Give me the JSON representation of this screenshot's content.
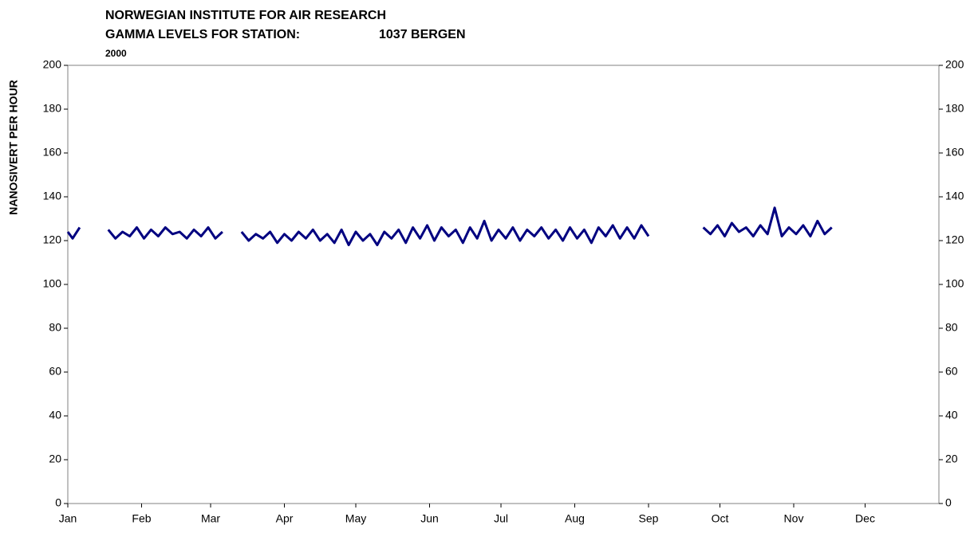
{
  "chart_data": {
    "type": "line",
    "title": "NORWEGIAN INSTITUTE FOR AIR RESEARCH",
    "subtitle": "GAMMA LEVELS FOR STATION:",
    "station": "1037 BERGEN",
    "year": "2000",
    "ylabel": "NANOSIVERT PER HOUR",
    "xlim": [
      0,
      366
    ],
    "xticks": [
      {
        "value": 0,
        "label": "Jan"
      },
      {
        "value": 31,
        "label": "Feb"
      },
      {
        "value": 60,
        "label": "Mar"
      },
      {
        "value": 91,
        "label": "Apr"
      },
      {
        "value": 121,
        "label": "May"
      },
      {
        "value": 152,
        "label": "Jun"
      },
      {
        "value": 182,
        "label": "Jul"
      },
      {
        "value": 213,
        "label": "Aug"
      },
      {
        "value": 244,
        "label": "Sep"
      },
      {
        "value": 274,
        "label": "Oct"
      },
      {
        "value": 305,
        "label": "Nov"
      },
      {
        "value": 335,
        "label": "Dec"
      }
    ],
    "ylim": [
      0,
      200
    ],
    "yticks": [
      0,
      20,
      40,
      60,
      80,
      100,
      120,
      140,
      160,
      180,
      200
    ],
    "y2lim": [
      0,
      200
    ],
    "y2ticks": [
      0,
      20,
      40,
      60,
      80,
      100,
      120,
      140,
      160,
      180,
      200
    ],
    "x": [
      0,
      2,
      5,
      10,
      17,
      20,
      23,
      26,
      29,
      32,
      35,
      38,
      41,
      44,
      47,
      50,
      53,
      56,
      59,
      62,
      65,
      69,
      73,
      76,
      79,
      82,
      85,
      88,
      91,
      94,
      97,
      100,
      103,
      106,
      109,
      112,
      115,
      118,
      121,
      124,
      127,
      130,
      133,
      136,
      139,
      142,
      145,
      148,
      151,
      154,
      157,
      160,
      163,
      166,
      169,
      172,
      175,
      178,
      181,
      184,
      187,
      190,
      193,
      196,
      199,
      202,
      205,
      208,
      211,
      214,
      217,
      220,
      223,
      226,
      229,
      232,
      235,
      238,
      241,
      244,
      255,
      267,
      270,
      273,
      276,
      279,
      282,
      285,
      288,
      291,
      294,
      297,
      300,
      303,
      306,
      309,
      312,
      315,
      318,
      321
    ],
    "series": [
      {
        "color": "#000080",
        "values": [
          124,
          121,
          126,
          null,
          125,
          121,
          124,
          122,
          126,
          121,
          125,
          122,
          126,
          123,
          124,
          121,
          125,
          122,
          126,
          121,
          124,
          null,
          124,
          120,
          123,
          121,
          124,
          119,
          123,
          120,
          124,
          121,
          125,
          120,
          123,
          119,
          125,
          118,
          124,
          120,
          123,
          118,
          124,
          121,
          125,
          119,
          126,
          121,
          127,
          120,
          126,
          122,
          125,
          119,
          126,
          121,
          129,
          120,
          125,
          121,
          126,
          120,
          125,
          122,
          126,
          121,
          125,
          120,
          126,
          121,
          125,
          119,
          126,
          122,
          127,
          121,
          126,
          121,
          127,
          122,
          null,
          126,
          123,
          127,
          122,
          128,
          124,
          126,
          122,
          127,
          123,
          135,
          122,
          126,
          123,
          127,
          122,
          129,
          123,
          126
        ]
      }
    ]
  }
}
